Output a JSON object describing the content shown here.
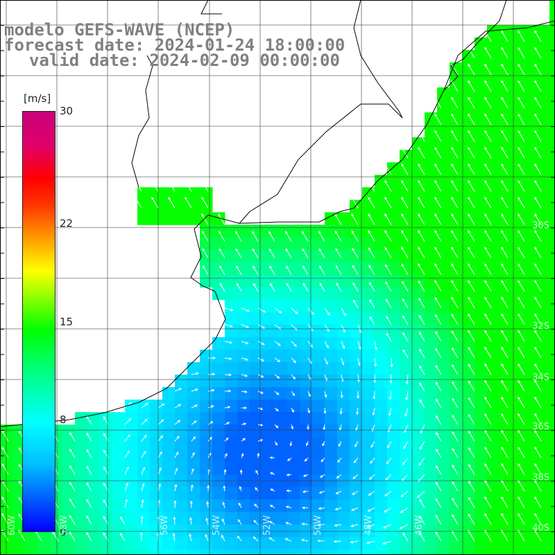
{
  "header": {
    "model": "modelo GEFS-WAVE (NCEP)",
    "forecast": "forecast date: 2024-01-24 18:00:00",
    "valid": "valid date: 2024-02-09 00:00:00"
  },
  "colorbar": {
    "unit": "[m/s]",
    "min": 0,
    "max": 30,
    "ticks": [
      "0",
      "8",
      "15",
      "22",
      "30"
    ],
    "tick_values": [
      0,
      8,
      15,
      22,
      30
    ]
  },
  "map_labels": {
    "lon": [
      "60W",
      "58W",
      "56W",
      "54W",
      "52W",
      "50W",
      "48W",
      "46W"
    ],
    "lat": [
      "30S",
      "32S",
      "34S",
      "36S",
      "38S",
      "40S"
    ]
  },
  "colors": {
    "land": "#ffffff",
    "coast": "#000000",
    "grid": "#404040",
    "arrow": "#ffffff",
    "header_text": "#808080"
  }
}
